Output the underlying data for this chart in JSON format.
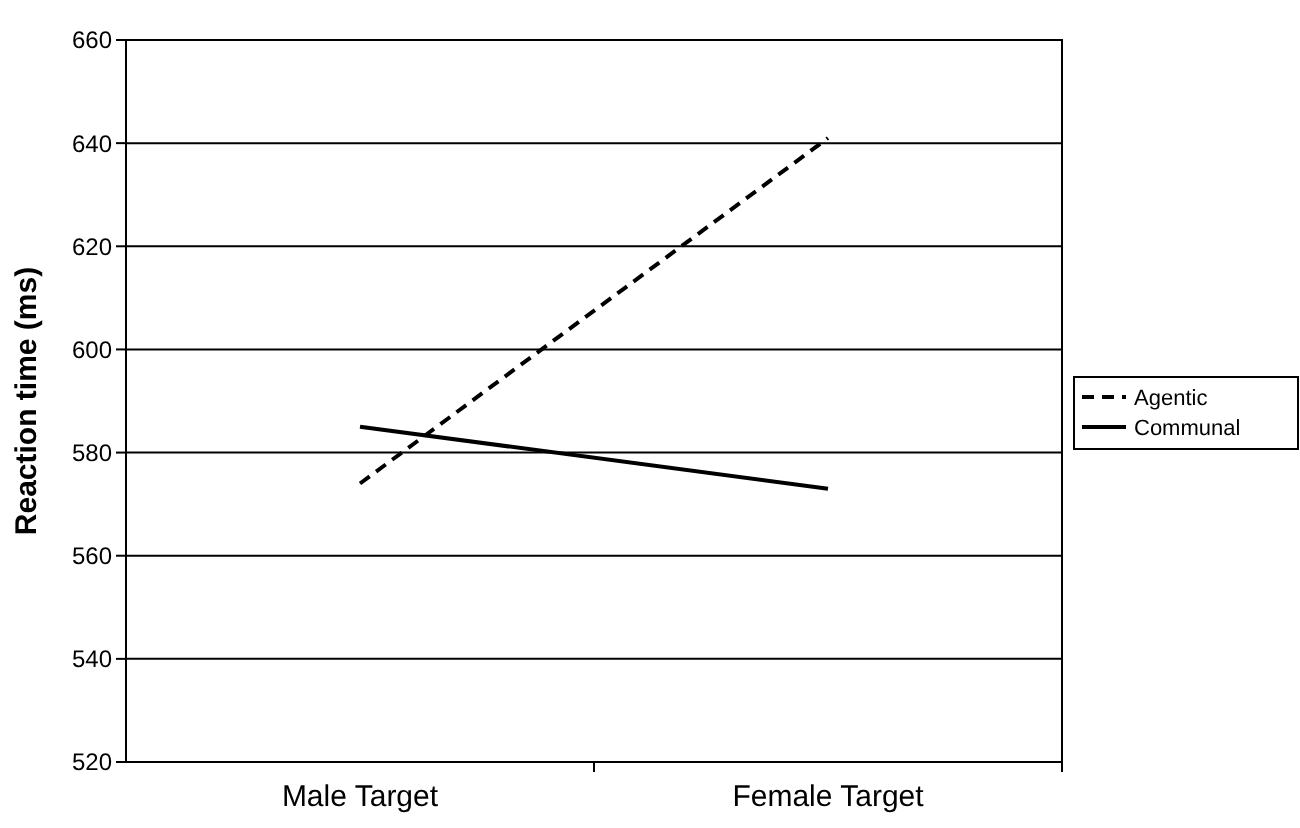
{
  "chart_data": {
    "type": "line",
    "ylabel": "Reaction time (ms)",
    "categories": [
      "Male Target",
      "Female Target"
    ],
    "series": [
      {
        "name": "Agentic",
        "color": "#000000",
        "values": [
          574,
          641
        ],
        "line_style": "dashed"
      },
      {
        "name": "Communal",
        "color": "#000000",
        "values": [
          585,
          573
        ],
        "line_style": "solid"
      }
    ],
    "ylim": [
      520,
      660
    ],
    "yticks": [
      520,
      540,
      560,
      580,
      600,
      620,
      640,
      660
    ],
    "grid": "y",
    "legend": "right",
    "marker": "none"
  }
}
